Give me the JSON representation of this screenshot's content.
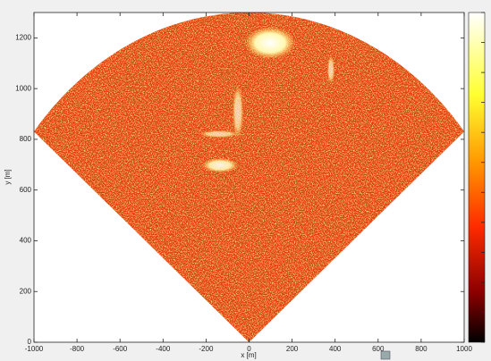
{
  "chart_data": {
    "type": "radar-image",
    "xlabel": "x [m]",
    "ylabel": "y [m]",
    "xlim": [
      -1000,
      1000
    ],
    "ylim": [
      0,
      1300
    ],
    "xticks": [
      -1000,
      -800,
      -600,
      -400,
      -200,
      0,
      200,
      400,
      600,
      800,
      1000
    ],
    "yticks": [
      0,
      200,
      400,
      600,
      800,
      1000,
      1200
    ]
  }
}
